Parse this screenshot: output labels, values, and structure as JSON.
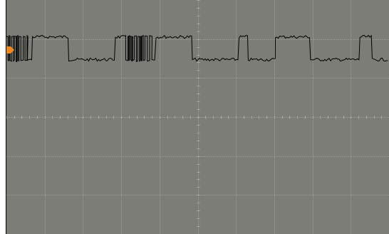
{
  "screen": {
    "background_color": "#7b7d76",
    "grid_color": "#9ca097",
    "center_tick_color": "#a9ada4",
    "border_color": "#000000",
    "trace_color": "#000000",
    "marker_color": "#f08a1f",
    "divisions_horizontal": 10,
    "divisions_vertical": 6
  },
  "trace": {
    "channel": "1",
    "marker_icon": "orange-channel-marker-icon",
    "levels": {
      "high": 0.82,
      "low": 0.33
    },
    "segments": [
      {
        "kind": "burst",
        "from": 0.0,
        "to": 0.055
      },
      {
        "kind": "flat_low",
        "from": 0.055,
        "to": 0.068
      },
      {
        "kind": "high",
        "from": 0.068,
        "to": 0.163
      },
      {
        "kind": "low",
        "from": 0.163,
        "to": 0.285
      },
      {
        "kind": "high",
        "from": 0.285,
        "to": 0.31
      },
      {
        "kind": "burst",
        "from": 0.31,
        "to": 0.38
      },
      {
        "kind": "flat_low",
        "from": 0.38,
        "to": 0.391
      },
      {
        "kind": "high",
        "from": 0.391,
        "to": 0.486
      },
      {
        "kind": "low",
        "from": 0.486,
        "to": 0.608
      },
      {
        "kind": "high",
        "from": 0.608,
        "to": 0.632
      },
      {
        "kind": "low",
        "from": 0.632,
        "to": 0.703
      },
      {
        "kind": "high",
        "from": 0.703,
        "to": 0.795
      },
      {
        "kind": "low",
        "from": 0.795,
        "to": 0.924
      },
      {
        "kind": "high",
        "from": 0.924,
        "to": 0.956
      },
      {
        "kind": "low",
        "from": 0.956,
        "to": 1.0
      }
    ]
  }
}
